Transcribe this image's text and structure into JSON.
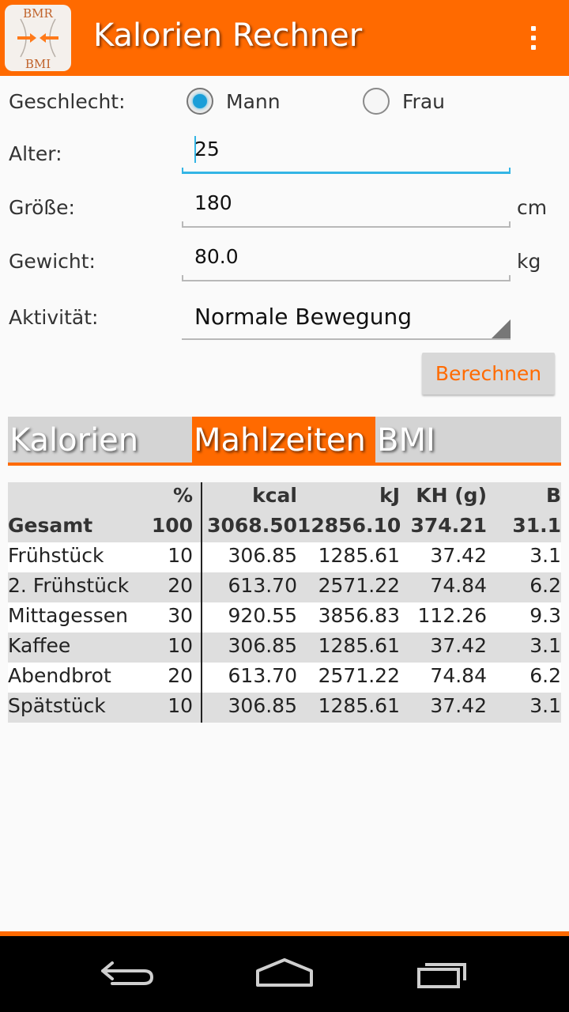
{
  "app": {
    "title": "Kalorien Rechner",
    "logo_top": "BMR",
    "logo_bottom": "BMI",
    "accent": "#ff6a00"
  },
  "form": {
    "gender_label": "Geschlecht:",
    "gender_options": [
      {
        "label": "Mann",
        "checked": true
      },
      {
        "label": "Frau",
        "checked": false
      }
    ],
    "age_label": "Alter:",
    "age_value": "25",
    "height_label": "Größe:",
    "height_value": "180",
    "height_unit": "cm",
    "weight_label": "Gewicht:",
    "weight_value": "80.0",
    "weight_unit": "kg",
    "activity_label": "Aktivität:",
    "activity_value": "Normale Bewegung",
    "calculate_button": "Berechnen"
  },
  "tabs": [
    {
      "label": "Kalorien",
      "active": false
    },
    {
      "label": "Mahlzeiten",
      "active": true
    },
    {
      "label": "BMI",
      "active": false
    }
  ],
  "table": {
    "headers": [
      "",
      "%",
      "kcal",
      "kJ",
      "KH (g)",
      "B"
    ],
    "total": [
      "Gesamt",
      "100",
      "3068.50",
      "12856.10",
      "374.21",
      "31.1"
    ],
    "rows": [
      [
        "Frühstück",
        "10",
        "306.85",
        "1285.61",
        "37.42",
        "3.1"
      ],
      [
        "2. Frühstück",
        "20",
        "613.70",
        "2571.22",
        "74.84",
        "6.2"
      ],
      [
        "Mittagessen",
        "30",
        "920.55",
        "3856.83",
        "112.26",
        "9.3"
      ],
      [
        "Kaffee",
        "10",
        "306.85",
        "1285.61",
        "37.42",
        "3.1"
      ],
      [
        "Abendbrot",
        "20",
        "613.70",
        "2571.22",
        "74.84",
        "6.2"
      ],
      [
        "Spätstück",
        "10",
        "306.85",
        "1285.61",
        "37.42",
        "3.1"
      ]
    ]
  },
  "navbar": {
    "icons": [
      "back-icon",
      "home-icon",
      "recents-icon"
    ]
  }
}
